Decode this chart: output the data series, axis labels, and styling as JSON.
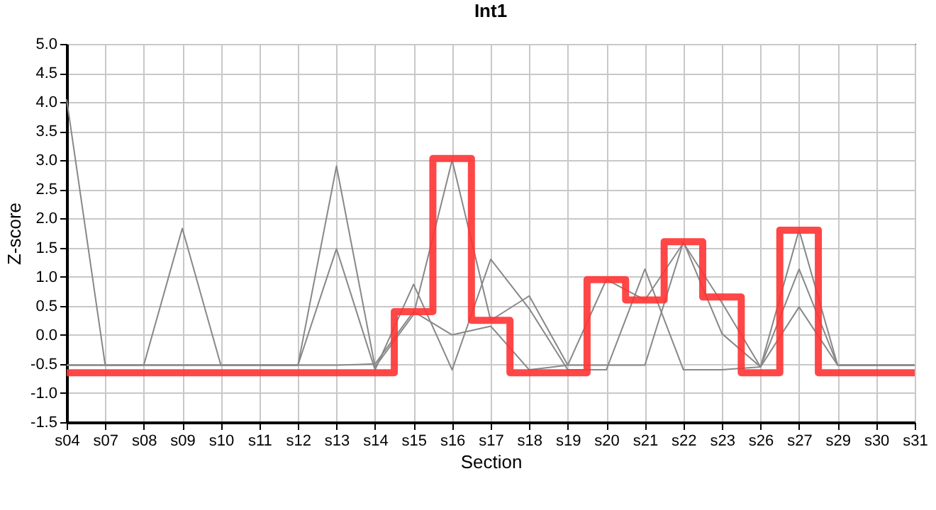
{
  "chart_data": {
    "type": "line",
    "title": "Int1",
    "xlabel": "Section",
    "ylabel": "Z-score",
    "categories": [
      "s04",
      "s07",
      "s08",
      "s09",
      "s10",
      "s11",
      "s12",
      "s13",
      "s14",
      "s15",
      "s16",
      "s17",
      "s18",
      "s19",
      "s20",
      "s21",
      "s22",
      "s23",
      "s26",
      "s27",
      "s29",
      "s30",
      "s31"
    ],
    "series": [
      {
        "type": "line",
        "color": "#888888",
        "values": [
          4.05,
          -0.52,
          -0.52,
          1.83,
          -0.52,
          -0.52,
          -0.52,
          2.9,
          -0.55,
          0.35,
          3.0,
          0.25,
          0.67,
          -0.52,
          0.95,
          0.6,
          1.58,
          0.55,
          -0.55,
          1.8,
          -0.52,
          -0.52,
          -0.52
        ]
      },
      {
        "type": "line",
        "color": "#888888",
        "values": [
          -0.52,
          -0.52,
          -0.52,
          -0.52,
          -0.52,
          -0.52,
          -0.52,
          1.48,
          -0.6,
          0.87,
          -0.6,
          1.3,
          0.45,
          -0.6,
          -0.6,
          1.13,
          -0.6,
          -0.6,
          -0.55,
          1.13,
          -0.52,
          -0.52,
          -0.52
        ]
      },
      {
        "type": "line",
        "color": "#888888",
        "values": [
          -0.52,
          -0.52,
          -0.52,
          -0.52,
          -0.52,
          -0.52,
          -0.52,
          -0.52,
          -0.5,
          0.4,
          0.0,
          0.15,
          -0.6,
          -0.52,
          -0.52,
          -0.52,
          1.6,
          0.02,
          -0.55,
          0.48,
          -0.52,
          -0.52,
          -0.52
        ]
      },
      {
        "type": "step",
        "color": "#ff3333",
        "values": [
          -0.65,
          -0.65,
          -0.65,
          -0.65,
          -0.65,
          -0.65,
          -0.65,
          -0.65,
          -0.65,
          0.4,
          3.03,
          0.25,
          -0.65,
          -0.65,
          0.95,
          0.6,
          1.6,
          0.65,
          -0.65,
          1.8,
          -0.65,
          -0.65,
          -0.65
        ]
      }
    ],
    "ylim": [
      -1.5,
      5.0
    ],
    "yticks": [
      -1.5,
      {
        "value": -1,
        "label": "-1.0"
      },
      -0.5,
      {
        "value": 0,
        "label": "0.0"
      },
      0.5,
      {
        "value": 1,
        "label": "1.0"
      },
      1.5,
      {
        "value": 2,
        "label": "2.0"
      },
      2.5,
      {
        "value": 3,
        "label": "3.0"
      },
      3.5,
      {
        "value": 4,
        "label": "4.0"
      },
      4.5,
      {
        "value": 5,
        "label": "5.0"
      }
    ],
    "grid": true,
    "marker": "none",
    "line_style": "solid"
  }
}
